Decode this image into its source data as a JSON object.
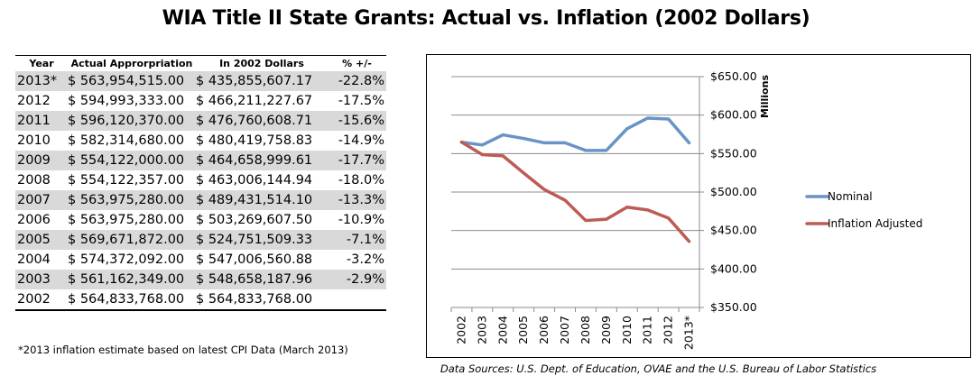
{
  "title": "WIA Title II State Grants: Actual vs. Inflation (2002 Dollars)",
  "table": {
    "headers": [
      "Year",
      "Actual Approrpriation",
      "In 2002 Dollars",
      "% +/-"
    ],
    "rows": [
      {
        "year": "2013*",
        "actual": "$ 563,954,515.00",
        "adjusted": "$ 435,855,607.17",
        "pct": "-22.8%"
      },
      {
        "year": "2012",
        "actual": "$ 594,993,333.00",
        "adjusted": "$ 466,211,227.67",
        "pct": "-17.5%"
      },
      {
        "year": "2011",
        "actual": "$ 596,120,370.00",
        "adjusted": "$ 476,760,608.71",
        "pct": "-15.6%"
      },
      {
        "year": "2010",
        "actual": "$ 582,314,680.00",
        "adjusted": "$ 480,419,758.83",
        "pct": "-14.9%"
      },
      {
        "year": "2009",
        "actual": "$ 554,122,000.00",
        "adjusted": "$ 464,658,999.61",
        "pct": "-17.7%"
      },
      {
        "year": "2008",
        "actual": "$ 554,122,357.00",
        "adjusted": "$ 463,006,144.94",
        "pct": "-18.0%"
      },
      {
        "year": "2007",
        "actual": "$ 563,975,280.00",
        "adjusted": "$ 489,431,514.10",
        "pct": "-13.3%"
      },
      {
        "year": "2006",
        "actual": "$ 563,975,280.00",
        "adjusted": "$ 503,269,607.50",
        "pct": "-10.9%"
      },
      {
        "year": "2005",
        "actual": "$ 569,671,872.00",
        "adjusted": "$ 524,751,509.33",
        "pct": "-7.1%"
      },
      {
        "year": "2004",
        "actual": "$ 574,372,092.00",
        "adjusted": "$ 547,006,560.88",
        "pct": "-3.2%"
      },
      {
        "year": "2003",
        "actual": "$ 561,162,349.00",
        "adjusted": "$ 548,658,187.96",
        "pct": "-2.9%"
      },
      {
        "year": "2002",
        "actual": "$ 564,833,768.00",
        "adjusted": "$ 564,833,768.00",
        "pct": ""
      }
    ]
  },
  "footnote": "*2013 inflation estimate based on latest CPI Data (March 2013)",
  "source": "Data Sources: U.S. Dept. of Education, OVAE and the U.S.  Bureau of Labor Statistics",
  "chart_data": {
    "type": "line",
    "title": "",
    "xlabel": "",
    "ylabel": "Millions",
    "categories": [
      "2002",
      "2003",
      "2004",
      "2005",
      "2006",
      "2007",
      "2008",
      "2009",
      "2010",
      "2011",
      "2012",
      "2013*"
    ],
    "series": [
      {
        "name": "Nominal",
        "color": "#6a93c8",
        "values": [
          564.83,
          561.16,
          574.37,
          569.67,
          563.98,
          563.98,
          554.12,
          554.12,
          582.31,
          596.12,
          594.99,
          563.95
        ]
      },
      {
        "name": "Inflation Adjusted",
        "color": "#bd5b55",
        "values": [
          564.83,
          548.66,
          547.01,
          524.75,
          503.27,
          489.43,
          463.01,
          464.66,
          480.42,
          476.76,
          466.21,
          435.86
        ]
      }
    ],
    "ylim": [
      350,
      650
    ],
    "yticks": [
      650,
      600,
      550,
      500,
      450,
      400,
      350
    ],
    "ytick_labels": [
      "$650.00",
      "$600.00",
      "$550.00",
      "$500.00",
      "$450.00",
      "$400.00",
      "$350.00"
    ],
    "y_axis_side": "right",
    "grid": true,
    "legend": "right"
  }
}
